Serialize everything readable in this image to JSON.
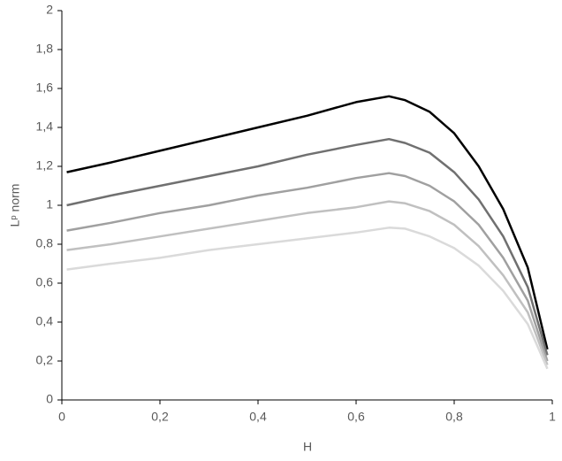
{
  "chart_data": {
    "type": "line",
    "xlabel": "H",
    "ylabel": "Lᵖ norm",
    "x": [
      0.01,
      0.1,
      0.2,
      0.3,
      0.4,
      0.5,
      0.6,
      0.667,
      0.7,
      0.75,
      0.8,
      0.85,
      0.9,
      0.95,
      0.99
    ],
    "series": [
      {
        "color": "#000000",
        "values": [
          1.17,
          1.22,
          1.28,
          1.34,
          1.4,
          1.46,
          1.53,
          1.56,
          1.54,
          1.48,
          1.37,
          1.2,
          0.98,
          0.68,
          0.26
        ]
      },
      {
        "color": "#707070",
        "values": [
          1.0,
          1.05,
          1.1,
          1.15,
          1.2,
          1.26,
          1.31,
          1.34,
          1.32,
          1.27,
          1.17,
          1.03,
          0.84,
          0.58,
          0.23
        ]
      },
      {
        "color": "#a0a0a0",
        "values": [
          0.87,
          0.91,
          0.96,
          1.0,
          1.05,
          1.09,
          1.14,
          1.165,
          1.15,
          1.1,
          1.02,
          0.9,
          0.73,
          0.51,
          0.2
        ]
      },
      {
        "color": "#c0c0c0",
        "values": [
          0.77,
          0.8,
          0.84,
          0.88,
          0.92,
          0.96,
          0.99,
          1.02,
          1.01,
          0.97,
          0.9,
          0.79,
          0.64,
          0.45,
          0.18
        ]
      },
      {
        "color": "#dadada",
        "values": [
          0.67,
          0.7,
          0.73,
          0.77,
          0.8,
          0.83,
          0.86,
          0.885,
          0.88,
          0.84,
          0.78,
          0.69,
          0.56,
          0.39,
          0.16
        ]
      }
    ],
    "xlim": [
      0,
      1
    ],
    "xticks": [
      0,
      {
        "value": 0.2,
        "label": "0,2"
      },
      {
        "value": 0.4,
        "label": "0,4"
      },
      {
        "value": 0.6,
        "label": "0,6"
      },
      {
        "value": 0.8,
        "label": "0,8"
      },
      1
    ],
    "ylim": [
      0,
      2
    ],
    "yticks": [
      0,
      {
        "value": 0.2,
        "label": "0,2"
      },
      {
        "value": 0.4,
        "label": "0,4"
      },
      {
        "value": 0.6,
        "label": "0,6"
      },
      {
        "value": 0.8,
        "label": "0,8"
      },
      1,
      {
        "value": 1.2,
        "label": "1,2"
      },
      {
        "value": 1.4,
        "label": "1,4"
      },
      {
        "value": 1.6,
        "label": "1,6"
      },
      {
        "value": 1.8,
        "label": "1,8"
      },
      2
    ],
    "grid": false
  }
}
